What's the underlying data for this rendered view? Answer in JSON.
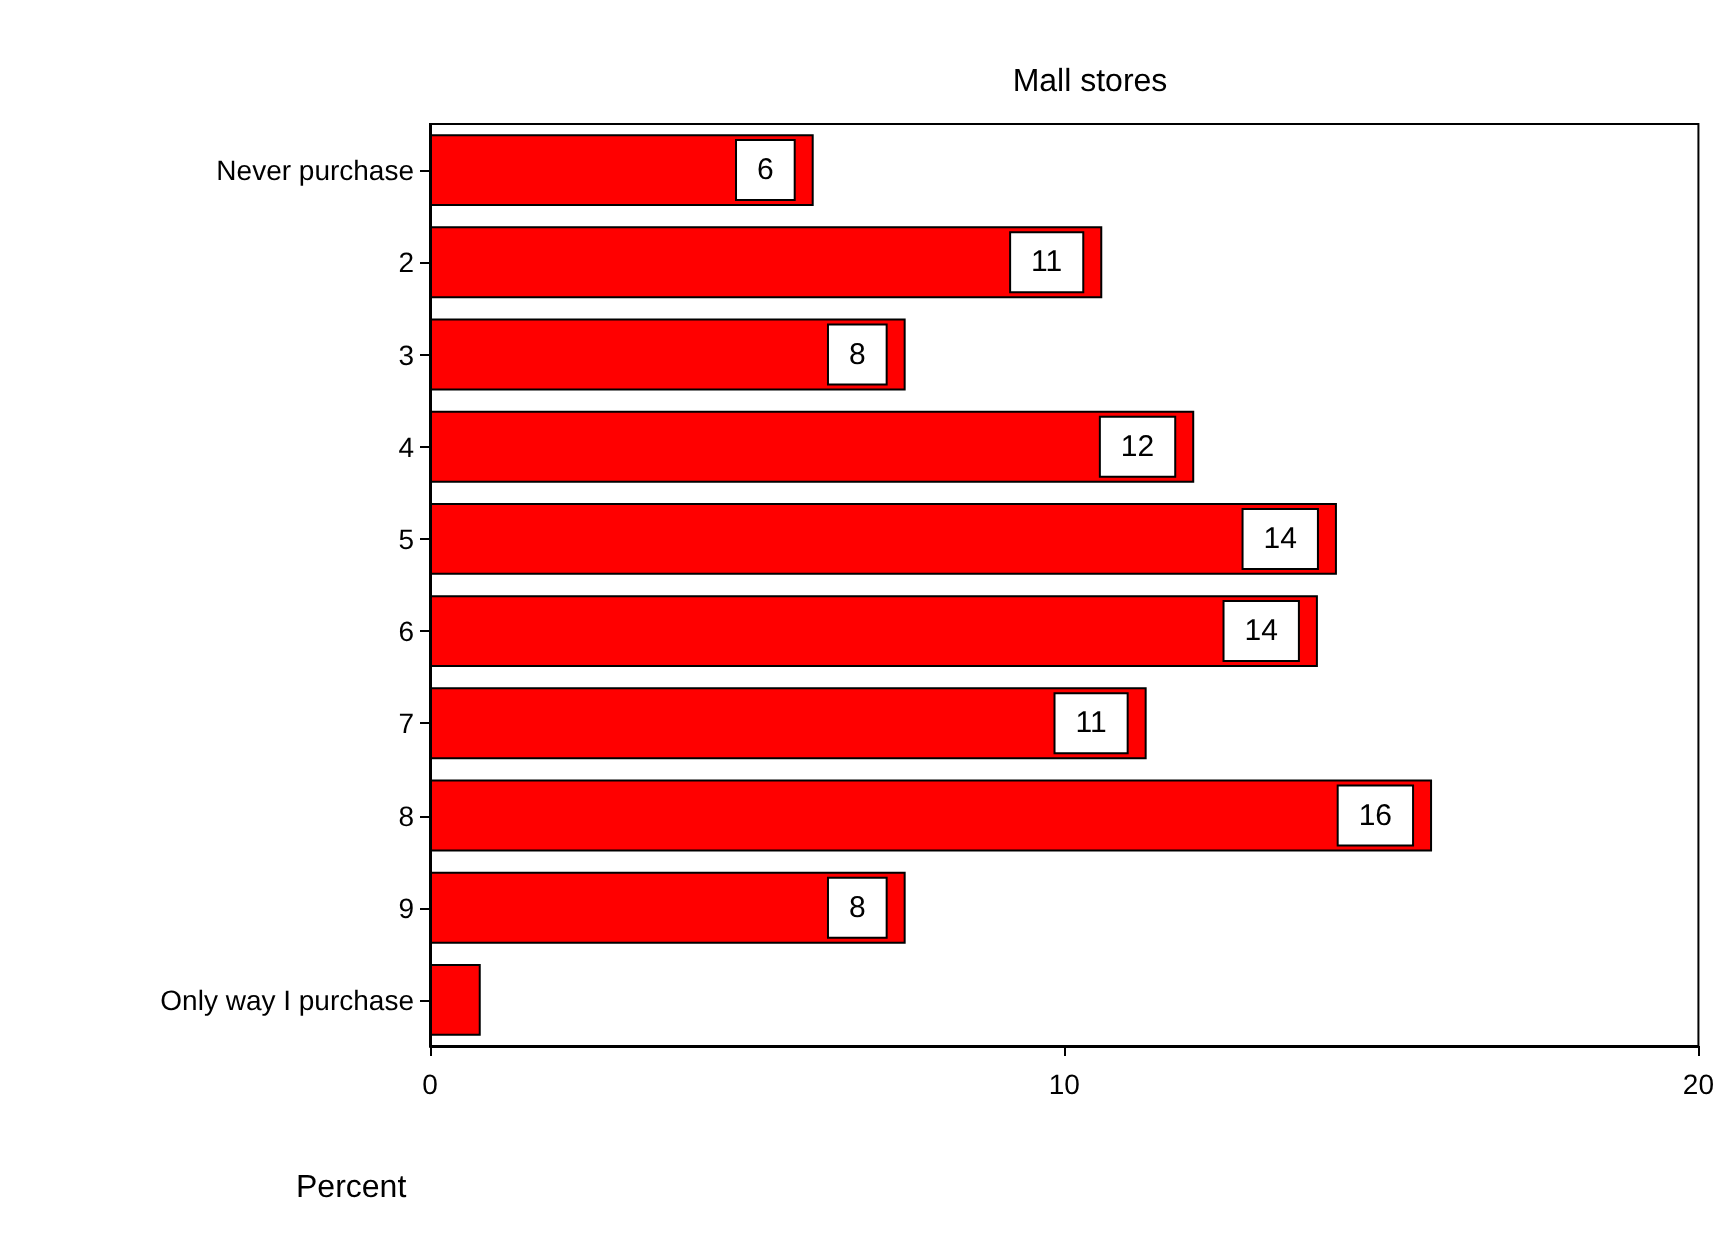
{
  "chart_data": {
    "type": "bar",
    "orientation": "horizontal",
    "title": "Mall stores",
    "xlabel": "Percent",
    "categories": [
      "Never purchase",
      "2",
      "3",
      "4",
      "5",
      "6",
      "7",
      "8",
      "9",
      "Only way I purchase"
    ],
    "values": [
      6.05,
      10.6,
      7.5,
      12.05,
      14.3,
      14.0,
      11.3,
      15.8,
      7.5,
      0.8
    ],
    "value_labels": [
      "6",
      "11",
      "8",
      "12",
      "14",
      "14",
      "11",
      "16",
      "8",
      null
    ],
    "color": "#ff0000",
    "xlim": [
      0,
      20
    ],
    "xticks": [
      0,
      10,
      20
    ],
    "grid": false
  }
}
